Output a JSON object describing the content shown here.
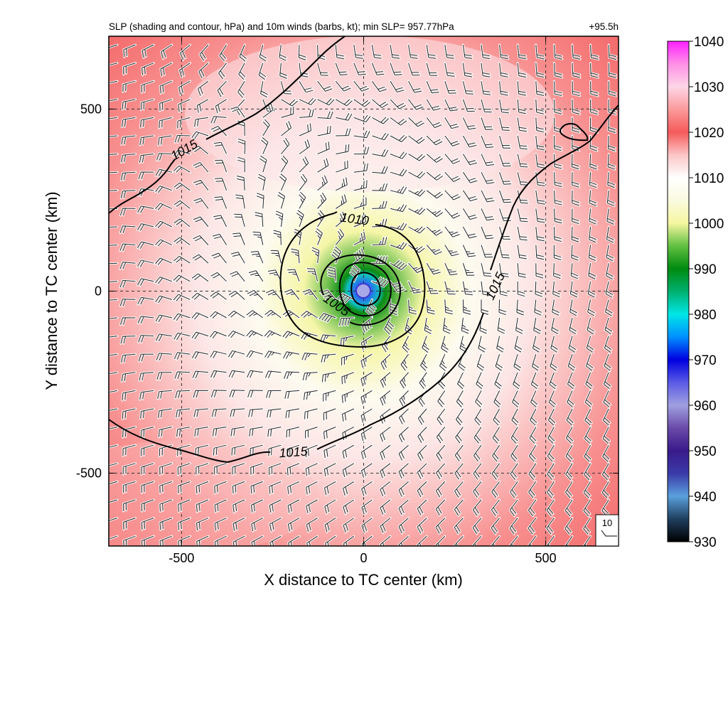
{
  "chart_data": {
    "type": "heatmap",
    "title": "SLP (shading and contour, hPa) and 10m winds (barbs, kt); min SLP= 957.77hPa",
    "time_label": "+95.5h",
    "xlabel": "X distance to TC center (km)",
    "ylabel": "Y distance to TC center (km)",
    "xlim": [
      -700,
      700
    ],
    "ylim": [
      -700,
      700
    ],
    "xticks": [
      -500,
      0,
      500
    ],
    "yticks": [
      -500,
      0,
      500
    ],
    "grid": true,
    "min_slp_hpa": 957.77,
    "center_km": [
      0,
      0
    ],
    "colorbar": {
      "min": 930,
      "max": 1040,
      "ticks": [
        930,
        940,
        950,
        960,
        970,
        980,
        990,
        1000,
        1010,
        1020,
        1030,
        1040
      ],
      "stops": [
        {
          "v": 930,
          "c": "#000000"
        },
        {
          "v": 935,
          "c": "#1f3f5f"
        },
        {
          "v": 940,
          "c": "#5aa0dc"
        },
        {
          "v": 945,
          "c": "#3a3aa8"
        },
        {
          "v": 950,
          "c": "#3a1a8a"
        },
        {
          "v": 955,
          "c": "#6a4aa8"
        },
        {
          "v": 960,
          "c": "#a0a0e0"
        },
        {
          "v": 965,
          "c": "#5a5ae6"
        },
        {
          "v": 970,
          "c": "#0000e0"
        },
        {
          "v": 975,
          "c": "#0090ff"
        },
        {
          "v": 980,
          "c": "#00e6e6"
        },
        {
          "v": 985,
          "c": "#00b070"
        },
        {
          "v": 990,
          "c": "#008a10"
        },
        {
          "v": 995,
          "c": "#60c040"
        },
        {
          "v": 1000,
          "c": "#f6f6a0"
        },
        {
          "v": 1005,
          "c": "#fafae0"
        },
        {
          "v": 1010,
          "c": "#ffffff"
        },
        {
          "v": 1015,
          "c": "#fcc6c6"
        },
        {
          "v": 1020,
          "c": "#f55a5a"
        },
        {
          "v": 1025,
          "c": "#fb9a9a"
        },
        {
          "v": 1030,
          "c": "#fdd6e6"
        },
        {
          "v": 1035,
          "c": "#ff90e6"
        },
        {
          "v": 1040,
          "c": "#ff20ff"
        }
      ]
    },
    "contours": [
      {
        "level": 1015,
        "label": "1015"
      },
      {
        "level": 1015,
        "label": "1015"
      },
      {
        "level": 1015,
        "label": "1015"
      },
      {
        "level": 1010,
        "label": "1010"
      },
      {
        "level": 1005,
        "label": "1005"
      }
    ],
    "wind_reference": {
      "label": "10",
      "units": "kt"
    }
  }
}
